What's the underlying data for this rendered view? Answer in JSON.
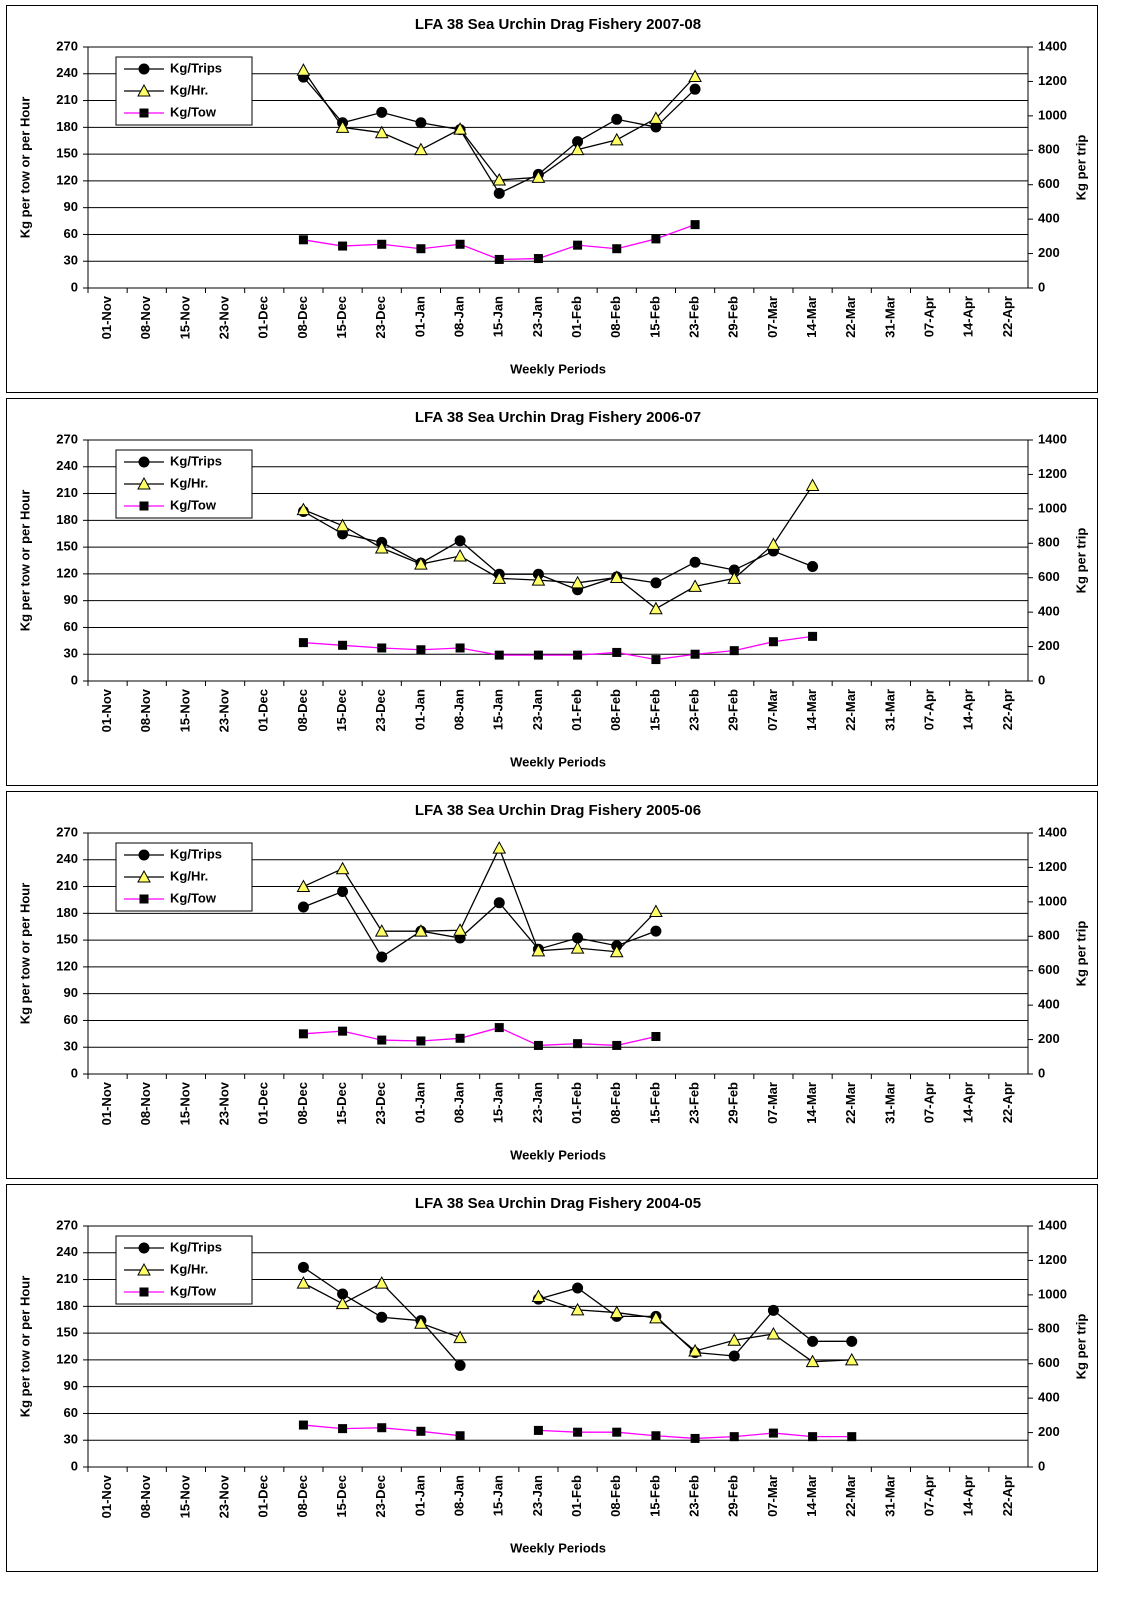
{
  "chart_data": [
    {
      "type": "line",
      "title": "LFA 38 Sea Urchin Drag Fishery 2007-08",
      "x_label": "Weekly Periods",
      "y_label": "Kg per tow or per Hour",
      "y2_label": "Kg per trip",
      "categories": [
        "01-Nov",
        "08-Nov",
        "15-Nov",
        "23-Nov",
        "01-Dec",
        "08-Dec",
        "15-Dec",
        "23-Dec",
        "01-Jan",
        "08-Jan",
        "15-Jan",
        "23-Jan",
        "01-Feb",
        "08-Feb",
        "15-Feb",
        "23-Feb",
        "29-Feb",
        "07-Mar",
        "14-Mar",
        "22-Mar",
        "31-Mar",
        "07-Apr",
        "14-Apr",
        "22-Apr"
      ],
      "series": [
        {
          "name": "Kg/Trips",
          "axis": "y2",
          "color": "#000000",
          "marker": "circle",
          "marker_color": "#000000",
          "values": [
            null,
            null,
            null,
            null,
            null,
            1225,
            960,
            1020,
            960,
            920,
            550,
            660,
            850,
            980,
            935,
            1155,
            null,
            null,
            null,
            null,
            null,
            null,
            null,
            null
          ]
        },
        {
          "name": "Kg/Hr.",
          "axis": "y",
          "color": "#000000",
          "marker": "triangle",
          "marker_color": "#ffff66",
          "values": [
            null,
            null,
            null,
            null,
            null,
            244,
            180,
            174,
            155,
            178,
            121,
            124,
            155,
            166,
            190,
            237,
            null,
            null,
            null,
            null,
            null,
            null,
            null,
            null
          ]
        },
        {
          "name": "Kg/Tow",
          "axis": "y",
          "color": "#ff00ff",
          "marker": "square",
          "marker_color": "#000000",
          "values": [
            null,
            null,
            null,
            null,
            null,
            54,
            47,
            49,
            44,
            49,
            32,
            33,
            48,
            44,
            55,
            71,
            null,
            null,
            null,
            null,
            null,
            null,
            null,
            null
          ]
        }
      ],
      "ylim": [
        0,
        270
      ],
      "yticks": [
        0,
        30,
        60,
        90,
        120,
        150,
        180,
        210,
        240,
        270
      ],
      "y2lim": [
        0,
        1400
      ],
      "y2ticks": [
        0,
        200,
        400,
        600,
        800,
        1000,
        1200,
        1400
      ],
      "grid": true,
      "legend": "top-left"
    },
    {
      "type": "line",
      "title": "LFA 38 Sea Urchin Drag Fishery 2006-07",
      "x_label": "Weekly Periods",
      "y_label": "Kg per tow or per Hour",
      "y2_label": "Kg per trip",
      "categories": [
        "01-Nov",
        "08-Nov",
        "15-Nov",
        "23-Nov",
        "01-Dec",
        "08-Dec",
        "15-Dec",
        "23-Dec",
        "01-Jan",
        "08-Jan",
        "15-Jan",
        "23-Jan",
        "01-Feb",
        "08-Feb",
        "15-Feb",
        "23-Feb",
        "29-Feb",
        "07-Mar",
        "14-Mar",
        "22-Mar",
        "31-Mar",
        "07-Apr",
        "14-Apr",
        "22-Apr"
      ],
      "series": [
        {
          "name": "Kg/Trips",
          "axis": "y2",
          "color": "#000000",
          "marker": "circle",
          "marker_color": "#000000",
          "values": [
            null,
            null,
            null,
            null,
            null,
            985,
            855,
            805,
            685,
            815,
            620,
            620,
            530,
            605,
            570,
            690,
            645,
            755,
            665,
            null,
            null,
            null,
            null,
            null
          ]
        },
        {
          "name": "Kg/Hr.",
          "axis": "y",
          "color": "#000000",
          "marker": "triangle",
          "marker_color": "#ffff66",
          "values": [
            null,
            null,
            null,
            null,
            null,
            192,
            174,
            149,
            131,
            140,
            115,
            113,
            110,
            116,
            81,
            106,
            115,
            153,
            219,
            null,
            null,
            null,
            null,
            null
          ]
        },
        {
          "name": "Kg/Tow",
          "axis": "y",
          "color": "#ff00ff",
          "marker": "square",
          "marker_color": "#000000",
          "values": [
            null,
            null,
            null,
            null,
            null,
            43,
            40,
            37,
            35,
            37,
            29,
            29,
            29,
            32,
            24,
            30,
            34,
            44,
            50,
            null,
            null,
            null,
            null,
            null
          ]
        }
      ],
      "ylim": [
        0,
        270
      ],
      "yticks": [
        0,
        30,
        60,
        90,
        120,
        150,
        180,
        210,
        240,
        270
      ],
      "y2lim": [
        0,
        1400
      ],
      "y2ticks": [
        0,
        200,
        400,
        600,
        800,
        1000,
        1200,
        1400
      ],
      "grid": true,
      "legend": "top-left"
    },
    {
      "type": "line",
      "title": "LFA 38 Sea Urchin Drag Fishery 2005-06",
      "x_label": "Weekly Periods",
      "y_label": "Kg per tow or per Hour",
      "y2_label": "Kg per trip",
      "categories": [
        "01-Nov",
        "08-Nov",
        "15-Nov",
        "23-Nov",
        "01-Dec",
        "08-Dec",
        "15-Dec",
        "23-Dec",
        "01-Jan",
        "08-Jan",
        "15-Jan",
        "23-Jan",
        "01-Feb",
        "08-Feb",
        "15-Feb",
        "23-Feb",
        "29-Feb",
        "07-Mar",
        "14-Mar",
        "22-Mar",
        "31-Mar",
        "07-Apr",
        "14-Apr",
        "22-Apr"
      ],
      "series": [
        {
          "name": "Kg/Trips",
          "axis": "y2",
          "color": "#000000",
          "marker": "circle",
          "marker_color": "#000000",
          "values": [
            null,
            null,
            null,
            null,
            null,
            970,
            1060,
            680,
            830,
            790,
            995,
            725,
            790,
            745,
            830,
            null,
            null,
            null,
            null,
            null,
            null,
            null,
            null,
            null
          ]
        },
        {
          "name": "Kg/Hr.",
          "axis": "y",
          "color": "#000000",
          "marker": "triangle",
          "marker_color": "#ffff66",
          "values": [
            null,
            null,
            null,
            null,
            null,
            210,
            230,
            160,
            160,
            161,
            253,
            138,
            141,
            137,
            182,
            null,
            null,
            null,
            null,
            null,
            null,
            null,
            null,
            null
          ]
        },
        {
          "name": "Kg/Tow",
          "axis": "y",
          "color": "#ff00ff",
          "marker": "square",
          "marker_color": "#000000",
          "values": [
            null,
            null,
            null,
            null,
            null,
            45,
            48,
            38,
            37,
            40,
            52,
            32,
            34,
            32,
            42,
            null,
            null,
            null,
            null,
            null,
            null,
            null,
            null,
            null
          ]
        }
      ],
      "ylim": [
        0,
        270
      ],
      "yticks": [
        0,
        30,
        60,
        90,
        120,
        150,
        180,
        210,
        240,
        270
      ],
      "y2lim": [
        0,
        1400
      ],
      "y2ticks": [
        0,
        200,
        400,
        600,
        800,
        1000,
        1200,
        1400
      ],
      "grid": true,
      "legend": "top-left"
    },
    {
      "type": "line",
      "title": "LFA 38 Sea Urchin Drag Fishery 2004-05",
      "x_label": "Weekly Periods",
      "y_label": "Kg per tow or per Hour",
      "y2_label": "Kg per trip",
      "categories": [
        "01-Nov",
        "08-Nov",
        "15-Nov",
        "23-Nov",
        "01-Dec",
        "08-Dec",
        "15-Dec",
        "23-Dec",
        "01-Jan",
        "08-Jan",
        "15-Jan",
        "23-Jan",
        "01-Feb",
        "08-Feb",
        "15-Feb",
        "23-Feb",
        "29-Feb",
        "07-Mar",
        "14-Mar",
        "22-Mar",
        "31-Mar",
        "07-Apr",
        "14-Apr",
        "22-Apr"
      ],
      "series": [
        {
          "name": "Kg/Trips",
          "axis": "y2",
          "color": "#000000",
          "marker": "circle",
          "marker_color": "#000000",
          "values": [
            null,
            null,
            null,
            null,
            null,
            1160,
            1005,
            870,
            850,
            590,
            null,
            975,
            1040,
            875,
            875,
            665,
            645,
            910,
            730,
            730,
            null,
            null,
            null,
            null
          ]
        },
        {
          "name": "Kg/Hr.",
          "axis": "y",
          "color": "#000000",
          "marker": "triangle",
          "marker_color": "#ffff66",
          "values": [
            null,
            null,
            null,
            null,
            null,
            206,
            183,
            206,
            161,
            145,
            null,
            191,
            176,
            173,
            167,
            130,
            142,
            149,
            118,
            120,
            null,
            null,
            null,
            null
          ]
        },
        {
          "name": "Kg/Tow",
          "axis": "y",
          "color": "#ff00ff",
          "marker": "square",
          "marker_color": "#000000",
          "values": [
            null,
            null,
            null,
            null,
            null,
            47,
            43,
            44,
            40,
            35,
            null,
            41,
            39,
            39,
            35,
            32,
            34,
            38,
            34,
            34,
            null,
            null,
            null,
            null
          ]
        }
      ],
      "ylim": [
        0,
        270
      ],
      "yticks": [
        0,
        30,
        60,
        90,
        120,
        150,
        180,
        210,
        240,
        270
      ],
      "y2lim": [
        0,
        1400
      ],
      "y2ticks": [
        0,
        200,
        400,
        600,
        800,
        1000,
        1200,
        1400
      ],
      "grid": true,
      "legend": "top-left"
    }
  ]
}
